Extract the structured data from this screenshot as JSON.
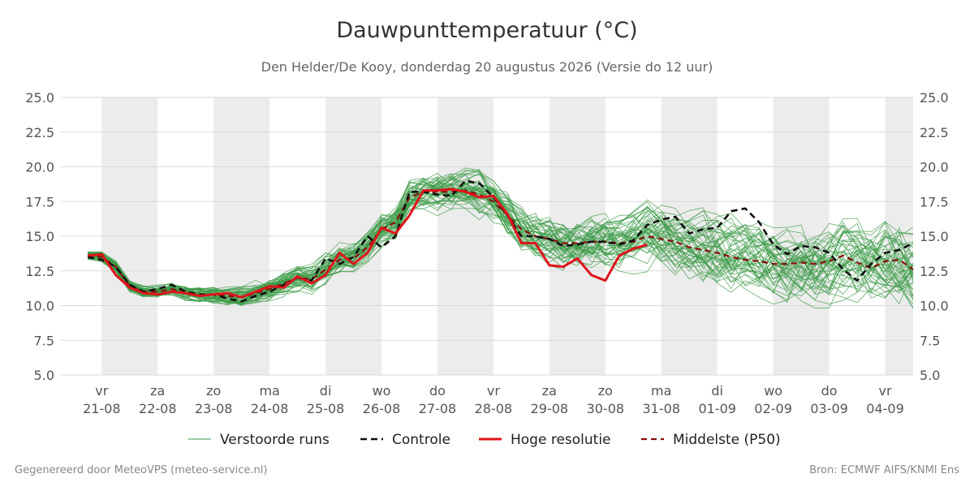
{
  "title": "Dauwpunttemperatuur (°C)",
  "subtitle": "Den Helder/De Kooy, donderdag 20 augustus 2026 (Versie do 12 uur)",
  "footer_left": "Gegenereerd door MeteoVPS (meteo-service.nl)",
  "footer_right": "Bron: ECMWF AIFS/KNMI Ens",
  "colors": {
    "ensemble": "#3a9a46",
    "control": "#111111",
    "hires": "#e0141b",
    "median": "#8b0d0d",
    "weekend_band": "#ececec",
    "grid": "#d9d9d9"
  },
  "chart_data": {
    "type": "line",
    "x_unit": "days since 21-08 00:00",
    "xlim": [
      -0.73,
      14.5
    ],
    "ylim": [
      5.0,
      25.0
    ],
    "yticks": [
      "5.0",
      "7.5",
      "10.0",
      "12.5",
      "15.0",
      "17.5",
      "20.0",
      "22.5",
      "25.0"
    ],
    "x_ticks": [
      {
        "day": "vr",
        "date": "21-08"
      },
      {
        "day": "za",
        "date": "22-08"
      },
      {
        "day": "zo",
        "date": "23-08"
      },
      {
        "day": "ma",
        "date": "24-08"
      },
      {
        "day": "di",
        "date": "25-08"
      },
      {
        "day": "wo",
        "date": "26-08"
      },
      {
        "day": "do",
        "date": "27-08"
      },
      {
        "day": "vr",
        "date": "28-08"
      },
      {
        "day": "za",
        "date": "29-08"
      },
      {
        "day": "zo",
        "date": "30-08"
      },
      {
        "day": "ma",
        "date": "31-08"
      },
      {
        "day": "di",
        "date": "01-09"
      },
      {
        "day": "wo",
        "date": "02-09"
      },
      {
        "day": "do",
        "date": "03-09"
      },
      {
        "day": "vr",
        "date": "04-09"
      }
    ],
    "grey_bands": [
      [
        0,
        1
      ],
      [
        2,
        3
      ],
      [
        4,
        5
      ],
      [
        6,
        7
      ],
      [
        8,
        9
      ],
      [
        10,
        11
      ],
      [
        12,
        13
      ],
      [
        14,
        14.5
      ]
    ],
    "legend": [
      "Verstoorde runs",
      "Controle",
      "Hoge resolutie",
      "Middelste (P50)"
    ],
    "series": [
      {
        "name": "Controle",
        "style": "dashed",
        "points": [
          [
            -0.25,
            13.5
          ],
          [
            0,
            13.3
          ],
          [
            0.25,
            12.8
          ],
          [
            0.5,
            11.5
          ],
          [
            0.75,
            11.0
          ],
          [
            1,
            11.2
          ],
          [
            1.25,
            11.5
          ],
          [
            1.5,
            11.0
          ],
          [
            1.75,
            10.8
          ],
          [
            2,
            10.8
          ],
          [
            2.25,
            10.5
          ],
          [
            2.5,
            10.3
          ],
          [
            2.75,
            10.7
          ],
          [
            3,
            11.0
          ],
          [
            3.25,
            11.5
          ],
          [
            3.5,
            12.0
          ],
          [
            3.75,
            11.8
          ],
          [
            4,
            13.4
          ],
          [
            4.25,
            13.0
          ],
          [
            4.5,
            13.5
          ],
          [
            4.75,
            15.0
          ],
          [
            5,
            14.2
          ],
          [
            5.25,
            15.0
          ],
          [
            5.5,
            18.2
          ],
          [
            5.75,
            18.2
          ],
          [
            6,
            18.0
          ],
          [
            6.25,
            17.9
          ],
          [
            6.5,
            19.0
          ],
          [
            6.75,
            18.8
          ],
          [
            7,
            17.8
          ],
          [
            7.25,
            16.5
          ],
          [
            7.5,
            15.0
          ],
          [
            7.75,
            15.0
          ],
          [
            8,
            14.8
          ],
          [
            8.25,
            14.3
          ],
          [
            8.5,
            14.4
          ],
          [
            8.75,
            14.6
          ],
          [
            9,
            14.6
          ],
          [
            9.25,
            14.4
          ],
          [
            9.5,
            14.7
          ],
          [
            9.75,
            15.8
          ],
          [
            10,
            16.2
          ],
          [
            10.25,
            16.4
          ],
          [
            10.5,
            15.2
          ],
          [
            10.75,
            15.5
          ],
          [
            11,
            15.6
          ],
          [
            11.25,
            16.8
          ],
          [
            11.5,
            17.0
          ],
          [
            11.75,
            16.0
          ],
          [
            12,
            14.4
          ],
          [
            12.25,
            13.7
          ],
          [
            12.5,
            14.3
          ],
          [
            12.75,
            14.2
          ],
          [
            13,
            13.8
          ],
          [
            13.25,
            12.6
          ],
          [
            13.5,
            11.8
          ],
          [
            13.75,
            13.0
          ],
          [
            14,
            13.8
          ],
          [
            14.25,
            14.0
          ],
          [
            14.5,
            14.5
          ]
        ]
      },
      {
        "name": "Hoge resolutie",
        "style": "solid",
        "points": [
          [
            -0.25,
            13.6
          ],
          [
            0,
            13.7
          ],
          [
            0.25,
            12.2
          ],
          [
            0.5,
            11.3
          ],
          [
            0.75,
            10.9
          ],
          [
            1,
            10.8
          ],
          [
            1.25,
            11.0
          ],
          [
            1.5,
            10.9
          ],
          [
            1.75,
            10.7
          ],
          [
            2,
            10.8
          ],
          [
            2.25,
            10.9
          ],
          [
            2.5,
            10.6
          ],
          [
            2.75,
            11.0
          ],
          [
            3,
            11.4
          ],
          [
            3.25,
            11.3
          ],
          [
            3.5,
            12.1
          ],
          [
            3.75,
            11.6
          ],
          [
            4,
            12.2
          ],
          [
            4.25,
            13.8
          ],
          [
            4.5,
            13.0
          ],
          [
            4.75,
            13.8
          ],
          [
            5,
            15.6
          ],
          [
            5.25,
            15.2
          ],
          [
            5.5,
            16.5
          ],
          [
            5.75,
            18.3
          ],
          [
            6,
            18.3
          ],
          [
            6.25,
            18.4
          ],
          [
            6.5,
            18.2
          ],
          [
            6.75,
            17.8
          ],
          [
            7,
            17.9
          ],
          [
            7.25,
            16.6
          ],
          [
            7.5,
            14.5
          ],
          [
            7.75,
            14.5
          ],
          [
            8,
            12.9
          ],
          [
            8.25,
            12.8
          ],
          [
            8.5,
            13.4
          ],
          [
            8.75,
            12.2
          ],
          [
            9,
            11.8
          ],
          [
            9.25,
            13.6
          ],
          [
            9.5,
            14.1
          ],
          [
            9.75,
            14.4
          ]
        ]
      },
      {
        "name": "Middelste (P50)",
        "style": "dashed",
        "points": [
          [
            -0.25,
            13.6
          ],
          [
            0,
            13.5
          ],
          [
            0.25,
            12.8
          ],
          [
            0.5,
            11.4
          ],
          [
            0.75,
            11.0
          ],
          [
            1,
            11.0
          ],
          [
            1.25,
            11.2
          ],
          [
            1.5,
            10.9
          ],
          [
            1.75,
            10.8
          ],
          [
            2,
            10.8
          ],
          [
            2.25,
            10.7
          ],
          [
            2.5,
            10.6
          ],
          [
            2.75,
            10.9
          ],
          [
            3,
            11.2
          ],
          [
            3.25,
            11.6
          ],
          [
            3.5,
            12.0
          ],
          [
            3.75,
            11.9
          ],
          [
            4,
            12.6
          ],
          [
            4.25,
            13.3
          ],
          [
            4.5,
            13.4
          ],
          [
            4.75,
            14.2
          ],
          [
            5,
            15.5
          ],
          [
            5.25,
            16.0
          ],
          [
            5.5,
            17.8
          ],
          [
            5.75,
            18.2
          ],
          [
            6,
            18.2
          ],
          [
            6.25,
            18.2
          ],
          [
            6.5,
            18.3
          ],
          [
            6.75,
            18.0
          ],
          [
            7,
            17.5
          ],
          [
            7.25,
            16.5
          ],
          [
            7.5,
            15.5
          ],
          [
            7.75,
            15.0
          ],
          [
            8,
            14.8
          ],
          [
            8.25,
            14.5
          ],
          [
            8.5,
            14.5
          ],
          [
            8.75,
            14.6
          ],
          [
            9,
            14.6
          ],
          [
            9.25,
            14.5
          ],
          [
            9.5,
            14.6
          ],
          [
            9.75,
            15.0
          ],
          [
            10,
            14.8
          ],
          [
            10.25,
            14.6
          ],
          [
            10.5,
            14.2
          ],
          [
            10.75,
            14.0
          ],
          [
            11,
            13.8
          ],
          [
            11.25,
            13.5
          ],
          [
            11.5,
            13.3
          ],
          [
            11.75,
            13.2
          ],
          [
            12,
            13.0
          ],
          [
            12.25,
            13.0
          ],
          [
            12.5,
            13.1
          ],
          [
            12.75,
            13.0
          ],
          [
            13,
            13.2
          ],
          [
            13.25,
            13.6
          ],
          [
            13.5,
            13.1
          ],
          [
            13.75,
            12.7
          ],
          [
            14,
            13.2
          ],
          [
            14.25,
            13.3
          ],
          [
            14.5,
            12.6
          ]
        ]
      }
    ],
    "ensemble_members": 50
  }
}
